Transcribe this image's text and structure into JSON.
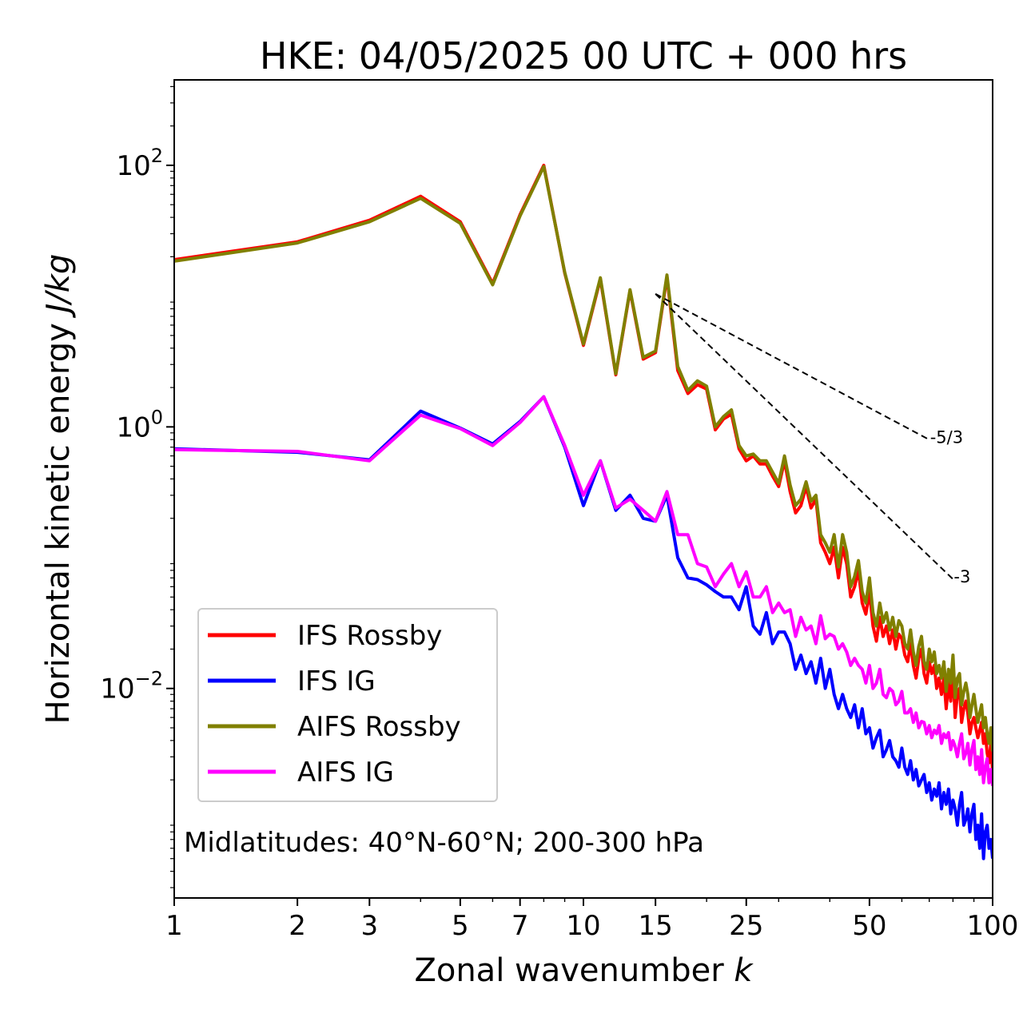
{
  "chart_data": {
    "type": "line",
    "title": "HKE: 04/05/2025 00 UTC + 000 hrs",
    "xlabel": "Zonal wavenumber",
    "xlabel_var": "k",
    "ylabel": "Horizontal kinetic energy",
    "ylabel_unit": "J/kg",
    "xscale": "log",
    "yscale": "log",
    "xlim": [
      1,
      100
    ],
    "ylim": [
      0.00025,
      450
    ],
    "xticks": [
      {
        "value": 1,
        "label": "1"
      },
      {
        "value": 2,
        "label": "2"
      },
      {
        "value": 3,
        "label": "3"
      },
      {
        "value": 5,
        "label": "5"
      },
      {
        "value": 7,
        "label": "7"
      },
      {
        "value": 10,
        "label": "10"
      },
      {
        "value": 15,
        "label": "15"
      },
      {
        "value": 25,
        "label": "25"
      },
      {
        "value": 50,
        "label": "50"
      },
      {
        "value": 100,
        "label": "100"
      }
    ],
    "yticks": [
      {
        "value": 0.01,
        "base": "10",
        "exp": "−2"
      },
      {
        "value": 1,
        "base": "10",
        "exp": "0"
      },
      {
        "value": 100,
        "base": "10",
        "exp": "2"
      }
    ],
    "annotation": "Midlatitudes: 40°N-60°N; 200-300 hPa",
    "legend_position": "lower-left",
    "reference_slopes": [
      {
        "label": "-5/3",
        "slope": -1.6667,
        "x": [
          15,
          70
        ],
        "y0": 10.4
      },
      {
        "label": "-3",
        "slope": -3,
        "x": [
          15,
          80
        ],
        "y0": 10.4
      }
    ],
    "series": [
      {
        "name": "IFS Rossby",
        "color": "#ff0000",
        "x": [
          1,
          2,
          3,
          4,
          5,
          6,
          7,
          8,
          9,
          10,
          11,
          12,
          13,
          14,
          15,
          16,
          17,
          18,
          19,
          20,
          21,
          22,
          23,
          24,
          25,
          26,
          27,
          28,
          29,
          30,
          31,
          32,
          33,
          34,
          35,
          36,
          37,
          38,
          39,
          40,
          41,
          42,
          43,
          44,
          45,
          46,
          47,
          48,
          49,
          50,
          51,
          52,
          53,
          54,
          55,
          56,
          57,
          58,
          59,
          60,
          61,
          62,
          63,
          64,
          65,
          66,
          67,
          68,
          69,
          70,
          71,
          72,
          73,
          74,
          75,
          76,
          77,
          78,
          79,
          80,
          81,
          82,
          83,
          84,
          85,
          86,
          87,
          88,
          89,
          90,
          91,
          92,
          93,
          94,
          95,
          96,
          97,
          98,
          99,
          100
        ],
        "y": [
          19,
          26,
          38,
          58,
          37,
          12.5,
          42,
          100,
          15,
          4.2,
          13.5,
          2.5,
          11,
          3.3,
          3.7,
          14,
          2.7,
          1.8,
          2.1,
          1.95,
          0.95,
          1.15,
          1.25,
          0.68,
          0.55,
          0.6,
          0.52,
          0.52,
          0.42,
          0.35,
          0.55,
          0.32,
          0.22,
          0.25,
          0.35,
          0.24,
          0.28,
          0.13,
          0.11,
          0.09,
          0.12,
          0.07,
          0.12,
          0.09,
          0.05,
          0.06,
          0.08,
          0.045,
          0.037,
          0.055,
          0.03,
          0.023,
          0.035,
          0.025,
          0.03,
          0.022,
          0.028,
          0.02,
          0.026,
          0.024,
          0.018,
          0.016,
          0.022,
          0.015,
          0.012,
          0.017,
          0.02,
          0.013,
          0.011,
          0.016,
          0.013,
          0.015,
          0.01,
          0.012,
          0.009,
          0.012,
          0.007,
          0.011,
          0.008,
          0.014,
          0.006,
          0.009,
          0.01,
          0.0055,
          0.007,
          0.008,
          0.0065,
          0.0045,
          0.0055,
          0.006,
          0.005,
          0.0042,
          0.0048,
          0.0055,
          0.0038,
          0.0045,
          0.0032,
          0.0027,
          0.0038,
          0.0023
        ]
      },
      {
        "name": "IFS IG",
        "color": "#0000ff",
        "x": [
          1,
          2,
          3,
          4,
          5,
          6,
          7,
          8,
          9,
          10,
          11,
          12,
          13,
          14,
          15,
          16,
          17,
          18,
          19,
          20,
          21,
          22,
          23,
          24,
          25,
          26,
          27,
          28,
          29,
          30,
          31,
          32,
          33,
          34,
          35,
          36,
          37,
          38,
          39,
          40,
          41,
          42,
          43,
          44,
          45,
          46,
          47,
          48,
          49,
          50,
          51,
          52,
          53,
          54,
          55,
          56,
          57,
          58,
          59,
          60,
          61,
          62,
          63,
          64,
          65,
          66,
          67,
          68,
          69,
          70,
          71,
          72,
          73,
          74,
          75,
          76,
          77,
          78,
          79,
          80,
          81,
          82,
          83,
          84,
          85,
          86,
          87,
          88,
          89,
          90,
          91,
          92,
          93,
          94,
          95,
          96,
          97,
          98,
          99,
          100
        ],
        "y": [
          0.68,
          0.64,
          0.56,
          1.32,
          0.98,
          0.74,
          1.1,
          1.7,
          0.7,
          0.25,
          0.55,
          0.23,
          0.3,
          0.2,
          0.19,
          0.3,
          0.1,
          0.07,
          0.068,
          0.062,
          0.055,
          0.05,
          0.05,
          0.04,
          0.06,
          0.03,
          0.026,
          0.038,
          0.022,
          0.027,
          0.027,
          0.022,
          0.014,
          0.018,
          0.013,
          0.016,
          0.011,
          0.017,
          0.01,
          0.014,
          0.009,
          0.007,
          0.009,
          0.007,
          0.006,
          0.0075,
          0.005,
          0.007,
          0.0045,
          0.005,
          0.0035,
          0.0042,
          0.0048,
          0.003,
          0.0034,
          0.004,
          0.003,
          0.0028,
          0.0025,
          0.0035,
          0.0025,
          0.0022,
          0.0028,
          0.002,
          0.0024,
          0.0018,
          0.002,
          0.0022,
          0.0016,
          0.0019,
          0.0014,
          0.0017,
          0.0015,
          0.0019,
          0.0012,
          0.0016,
          0.0013,
          0.0017,
          0.0011,
          0.0014,
          0.0012,
          0.0009,
          0.0013,
          0.0016,
          0.0009,
          0.001,
          0.0012,
          0.0008,
          0.0011,
          0.0013,
          0.0007,
          0.0009,
          0.0006,
          0.0011,
          0.0005,
          0.0008,
          0.0009,
          0.0006,
          0.0007,
          0.0005
        ]
      },
      {
        "name": "AIFS Rossby",
        "color": "#808000",
        "x": [
          1,
          2,
          3,
          4,
          5,
          6,
          7,
          8,
          9,
          10,
          11,
          12,
          13,
          14,
          15,
          16,
          17,
          18,
          19,
          20,
          21,
          22,
          23,
          24,
          25,
          26,
          27,
          28,
          29,
          30,
          31,
          32,
          33,
          34,
          35,
          36,
          37,
          38,
          39,
          40,
          41,
          42,
          43,
          44,
          45,
          46,
          47,
          48,
          49,
          50,
          51,
          52,
          53,
          54,
          55,
          56,
          57,
          58,
          59,
          60,
          61,
          62,
          63,
          64,
          65,
          66,
          67,
          68,
          69,
          70,
          71,
          72,
          73,
          74,
          75,
          76,
          77,
          78,
          79,
          80,
          81,
          82,
          83,
          84,
          85,
          86,
          87,
          88,
          89,
          90,
          91,
          92,
          93,
          94,
          95,
          96,
          97,
          98,
          99,
          100
        ],
        "y": [
          18.5,
          25.5,
          37,
          56,
          36,
          12.2,
          41,
          98,
          15.2,
          4.3,
          13.8,
          2.55,
          11.2,
          3.4,
          3.8,
          14.5,
          2.9,
          1.9,
          2.25,
          2.05,
          1.0,
          1.2,
          1.35,
          0.72,
          0.6,
          0.62,
          0.55,
          0.55,
          0.45,
          0.37,
          0.6,
          0.36,
          0.25,
          0.28,
          0.38,
          0.27,
          0.3,
          0.15,
          0.13,
          0.11,
          0.15,
          0.085,
          0.15,
          0.11,
          0.06,
          0.072,
          0.095,
          0.055,
          0.045,
          0.07,
          0.038,
          0.03,
          0.045,
          0.032,
          0.038,
          0.028,
          0.035,
          0.025,
          0.033,
          0.03,
          0.022,
          0.02,
          0.028,
          0.019,
          0.015,
          0.021,
          0.025,
          0.016,
          0.014,
          0.02,
          0.016,
          0.019,
          0.013,
          0.015,
          0.012,
          0.016,
          0.0095,
          0.014,
          0.011,
          0.018,
          0.0085,
          0.012,
          0.013,
          0.0075,
          0.0095,
          0.011,
          0.009,
          0.006,
          0.0075,
          0.009,
          0.007,
          0.0055,
          0.0065,
          0.0075,
          0.005,
          0.006,
          0.0045,
          0.0038,
          0.005,
          0.0033
        ]
      },
      {
        "name": "AIFS IG",
        "color": "#ff00ff",
        "x": [
          1,
          2,
          3,
          4,
          5,
          6,
          7,
          8,
          9,
          10,
          11,
          12,
          13,
          14,
          15,
          16,
          17,
          18,
          19,
          20,
          21,
          22,
          23,
          24,
          25,
          26,
          27,
          28,
          29,
          30,
          31,
          32,
          33,
          34,
          35,
          36,
          37,
          38,
          39,
          40,
          41,
          42,
          43,
          44,
          45,
          46,
          47,
          48,
          49,
          50,
          51,
          52,
          53,
          54,
          55,
          56,
          57,
          58,
          59,
          60,
          61,
          62,
          63,
          64,
          65,
          66,
          67,
          68,
          69,
          70,
          71,
          72,
          73,
          74,
          75,
          76,
          77,
          78,
          79,
          80,
          81,
          82,
          83,
          84,
          85,
          86,
          87,
          88,
          89,
          90,
          91,
          92,
          93,
          94,
          95,
          96,
          97,
          98,
          99,
          100
        ],
        "y": [
          0.67,
          0.65,
          0.55,
          1.23,
          0.97,
          0.72,
          1.08,
          1.7,
          0.72,
          0.3,
          0.55,
          0.24,
          0.28,
          0.23,
          0.19,
          0.32,
          0.15,
          0.15,
          0.09,
          0.085,
          0.06,
          0.075,
          0.09,
          0.06,
          0.078,
          0.05,
          0.05,
          0.06,
          0.038,
          0.045,
          0.038,
          0.04,
          0.025,
          0.035,
          0.028,
          0.03,
          0.022,
          0.036,
          0.024,
          0.026,
          0.025,
          0.02,
          0.022,
          0.019,
          0.015,
          0.017,
          0.015,
          0.014,
          0.011,
          0.015,
          0.01,
          0.011,
          0.014,
          0.009,
          0.0085,
          0.01,
          0.0095,
          0.0075,
          0.008,
          0.0095,
          0.0065,
          0.0065,
          0.007,
          0.0055,
          0.0065,
          0.005,
          0.0056,
          0.0055,
          0.0045,
          0.0052,
          0.0042,
          0.0048,
          0.0045,
          0.0052,
          0.0038,
          0.0045,
          0.0042,
          0.0046,
          0.0034,
          0.004,
          0.0036,
          0.003,
          0.0038,
          0.0045,
          0.0029,
          0.0032,
          0.0038,
          0.0026,
          0.0034,
          0.004,
          0.0024,
          0.003,
          0.0022,
          0.0034,
          0.0019,
          0.0025,
          0.0029,
          0.0019,
          0.0024,
          0.0018
        ]
      }
    ]
  }
}
